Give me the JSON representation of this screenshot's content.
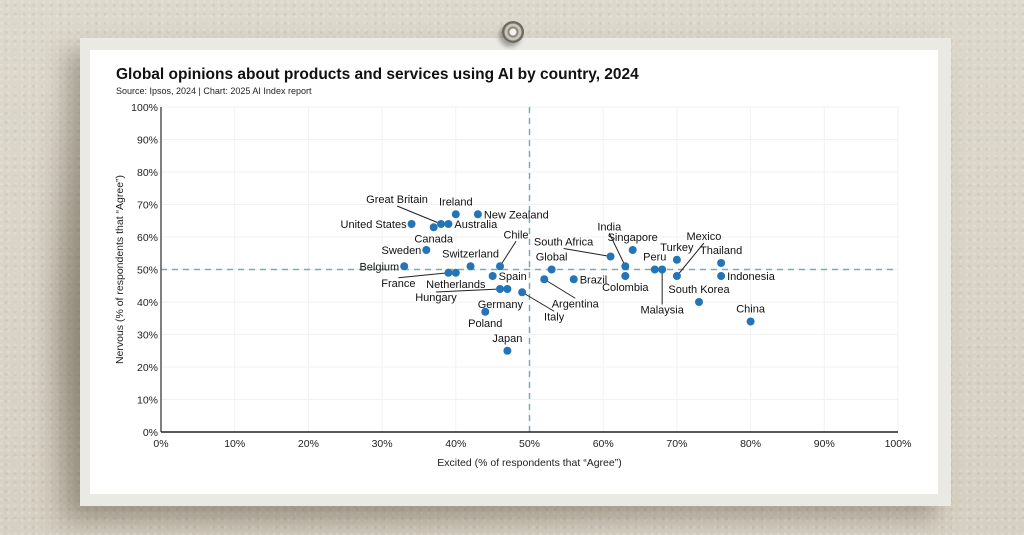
{
  "chart_data": {
    "type": "scatter",
    "title": "Global opinions about products and services using AI by country, 2024",
    "subtitle": "Source: Ipsos, 2024 | Chart: 2025 AI Index report",
    "xlabel": "Excited (% of respondents that “Agree”)",
    "ylabel": "Nervous (% of respondents that “Agree”)",
    "xlim": [
      0,
      100
    ],
    "ylim": [
      0,
      100
    ],
    "x_ticks": [
      "0%",
      "10%",
      "20%",
      "30%",
      "40%",
      "50%",
      "60%",
      "70%",
      "80%",
      "90%",
      "100%"
    ],
    "y_ticks": [
      "0%",
      "10%",
      "20%",
      "30%",
      "40%",
      "50%",
      "60%",
      "70%",
      "80%",
      "90%",
      "100%"
    ],
    "grid": true,
    "reference_lines": {
      "x": 50,
      "y": 50,
      "style": "dashed"
    },
    "colors": {
      "point": "#2474b8",
      "reference": "#7ea9b2",
      "grid": "#f1f1f1",
      "axis": "#333333"
    },
    "points": [
      {
        "label": "United States",
        "x": 34,
        "y": 64
      },
      {
        "label": "Canada",
        "x": 37,
        "y": 63
      },
      {
        "label": "Great Britain",
        "x": 38,
        "y": 64
      },
      {
        "label": "Australia",
        "x": 39,
        "y": 64
      },
      {
        "label": "Ireland",
        "x": 40,
        "y": 67
      },
      {
        "label": "New Zealand",
        "x": 43,
        "y": 67
      },
      {
        "label": "Sweden",
        "x": 36,
        "y": 56
      },
      {
        "label": "Belgium",
        "x": 33,
        "y": 51
      },
      {
        "label": "Switzerland",
        "x": 42,
        "y": 51
      },
      {
        "label": "Chile",
        "x": 46,
        "y": 51
      },
      {
        "label": "France",
        "x": 39,
        "y": 49
      },
      {
        "label": "Netherlands",
        "x": 40,
        "y": 49
      },
      {
        "label": "Spain",
        "x": 45,
        "y": 48
      },
      {
        "label": "Hungary",
        "x": 46,
        "y": 44
      },
      {
        "label": "Germany",
        "x": 47,
        "y": 44
      },
      {
        "label": "Italy",
        "x": 49,
        "y": 43
      },
      {
        "label": "Poland",
        "x": 44,
        "y": 37
      },
      {
        "label": "Japan",
        "x": 47,
        "y": 25
      },
      {
        "label": "Global",
        "x": 53,
        "y": 50
      },
      {
        "label": "Argentina",
        "x": 52,
        "y": 47
      },
      {
        "label": "Brazil",
        "x": 56,
        "y": 47
      },
      {
        "label": "South Africa",
        "x": 61,
        "y": 54
      },
      {
        "label": "India",
        "x": 63,
        "y": 51
      },
      {
        "label": "Colombia",
        "x": 63,
        "y": 48
      },
      {
        "label": "Singapore",
        "x": 64,
        "y": 56
      },
      {
        "label": "Peru",
        "x": 67,
        "y": 50
      },
      {
        "label": "Malaysia",
        "x": 68,
        "y": 50
      },
      {
        "label": "Turkey",
        "x": 70,
        "y": 53
      },
      {
        "label": "Mexico",
        "x": 70,
        "y": 48
      },
      {
        "label": "Thailand",
        "x": 76,
        "y": 52
      },
      {
        "label": "Indonesia",
        "x": 76,
        "y": 48
      },
      {
        "label": "South Korea",
        "x": 73,
        "y": 40
      },
      {
        "label": "China",
        "x": 80,
        "y": 34
      }
    ]
  }
}
